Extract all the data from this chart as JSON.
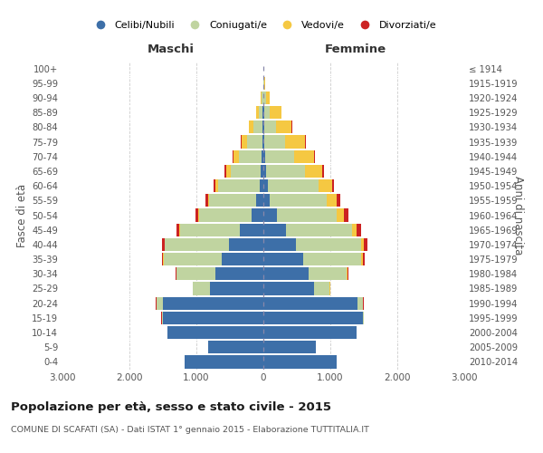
{
  "age_groups": [
    "0-4",
    "5-9",
    "10-14",
    "15-19",
    "20-24",
    "25-29",
    "30-34",
    "35-39",
    "40-44",
    "45-49",
    "50-54",
    "55-59",
    "60-64",
    "65-69",
    "70-74",
    "75-79",
    "80-84",
    "85-89",
    "90-94",
    "95-99",
    "100+"
  ],
  "birth_years": [
    "2010-2014",
    "2005-2009",
    "2000-2004",
    "1995-1999",
    "1990-1994",
    "1985-1989",
    "1980-1984",
    "1975-1979",
    "1970-1974",
    "1965-1969",
    "1960-1964",
    "1955-1959",
    "1950-1954",
    "1945-1949",
    "1940-1944",
    "1935-1939",
    "1930-1934",
    "1925-1929",
    "1920-1924",
    "1915-1919",
    "≤ 1914"
  ],
  "male": {
    "celibi": [
      1180,
      820,
      1430,
      1500,
      1500,
      800,
      720,
      620,
      520,
      350,
      180,
      110,
      60,
      40,
      30,
      20,
      15,
      10,
      5,
      2,
      2
    ],
    "coniugati": [
      0,
      0,
      0,
      20,
      100,
      250,
      580,
      870,
      950,
      900,
      780,
      700,
      620,
      450,
      340,
      230,
      130,
      60,
      20,
      2,
      0
    ],
    "vedovi": [
      0,
      0,
      0,
      0,
      1,
      2,
      3,
      5,
      8,
      10,
      15,
      20,
      40,
      70,
      80,
      80,
      70,
      40,
      10,
      2,
      0
    ],
    "divorziati": [
      0,
      0,
      0,
      1,
      2,
      5,
      10,
      20,
      35,
      40,
      40,
      35,
      30,
      20,
      15,
      8,
      3,
      2,
      1,
      0,
      0
    ]
  },
  "female": {
    "nubili": [
      1100,
      780,
      1390,
      1480,
      1400,
      760,
      680,
      590,
      480,
      340,
      200,
      100,
      65,
      45,
      30,
      20,
      15,
      10,
      5,
      2,
      2
    ],
    "coniugate": [
      0,
      0,
      0,
      15,
      90,
      230,
      560,
      870,
      980,
      980,
      900,
      850,
      760,
      570,
      430,
      310,
      170,
      80,
      30,
      5,
      0
    ],
    "vedove": [
      0,
      0,
      0,
      1,
      2,
      5,
      10,
      20,
      40,
      70,
      100,
      150,
      200,
      270,
      290,
      290,
      240,
      180,
      60,
      15,
      1
    ],
    "divorziate": [
      0,
      0,
      0,
      1,
      2,
      5,
      15,
      30,
      60,
      70,
      70,
      50,
      30,
      20,
      15,
      10,
      5,
      3,
      2,
      1,
      0
    ]
  },
  "colors": {
    "celibi": "#3d6fa8",
    "coniugati": "#c0d4a0",
    "vedovi": "#f5c842",
    "divorziati": "#cc2222"
  },
  "xlim": 3000,
  "title": "Popolazione per età, sesso e stato civile - 2015",
  "subtitle": "COMUNE DI SCAFATI (SA) - Dati ISTAT 1° gennaio 2015 - Elaborazione TUTTITALIA.IT",
  "ylabel_left": "Fasce di età",
  "ylabel_right": "Anni di nascita",
  "legend_labels": [
    "Celibi/Nubili",
    "Coniugati/e",
    "Vedovi/e",
    "Divorziati/e"
  ]
}
